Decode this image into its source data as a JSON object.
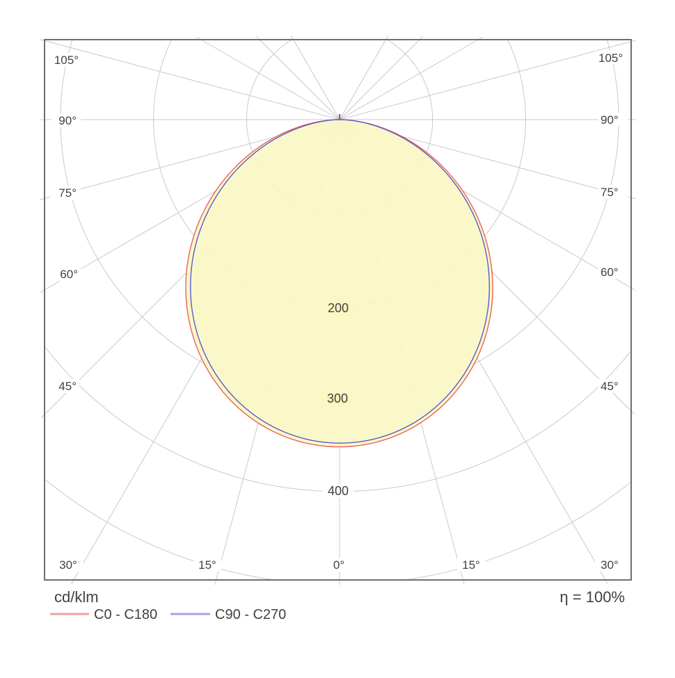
{
  "footer": {
    "unit_label": "cd/klm",
    "efficiency_label": "η = 100%"
  },
  "legend": [
    {
      "label": "C0 - C180",
      "color": "#e9625c",
      "swatch_color": "#f0a09c"
    },
    {
      "label": "C90 - C270",
      "color": "#5a5ace",
      "swatch_color": "#a2a2ec"
    }
  ],
  "axis_labels": {
    "left": [
      "105°",
      "90°",
      "75°",
      "60°",
      "45°",
      "30°"
    ],
    "bottom": [
      "15°",
      "0°",
      "15°"
    ],
    "right": [
      "105°",
      "90°",
      "75°",
      "60°",
      "45°",
      "30°"
    ]
  },
  "ring_labels": [
    "200",
    "300",
    "400"
  ],
  "chart_data": {
    "type": "polar_intensity_distribution",
    "units": "cd/klm",
    "efficiency": "η = 100%",
    "gamma_grid_step_deg": 15,
    "gamma_labeled_range_deg": [
      0,
      105
    ],
    "grid_radial_lines_max_deg": 150,
    "ring_values": [
      100,
      200,
      300,
      400,
      500
    ],
    "labeled_rings": [
      200,
      300,
      400
    ],
    "fill_color": "#faf7c2",
    "grid_color": "#c9c9c9",
    "border_color": "#6f6f6f",
    "spike_at_origin_height_units": 6,
    "series": [
      {
        "name": "C0 - C180",
        "color": "#e9625c",
        "model": {
          "peak_cd_per_klm": 352,
          "cosine_exponent": 1.2
        },
        "gamma_deg": [
          0,
          15,
          30,
          45,
          60,
          75,
          90
        ],
        "intensity_cd_per_klm": [
          352,
          338,
          297,
          233,
          153,
          70,
          5
        ]
      },
      {
        "name": "C90 - C270",
        "color": "#5a5ace",
        "model": {
          "peak_cd_per_klm": 348,
          "cosine_exponent": 1.25
        },
        "gamma_deg": [
          0,
          15,
          30,
          45,
          60,
          75,
          90
        ],
        "intensity_cd_per_klm": [
          348,
          333,
          290,
          225,
          146,
          64,
          5
        ]
      }
    ]
  }
}
